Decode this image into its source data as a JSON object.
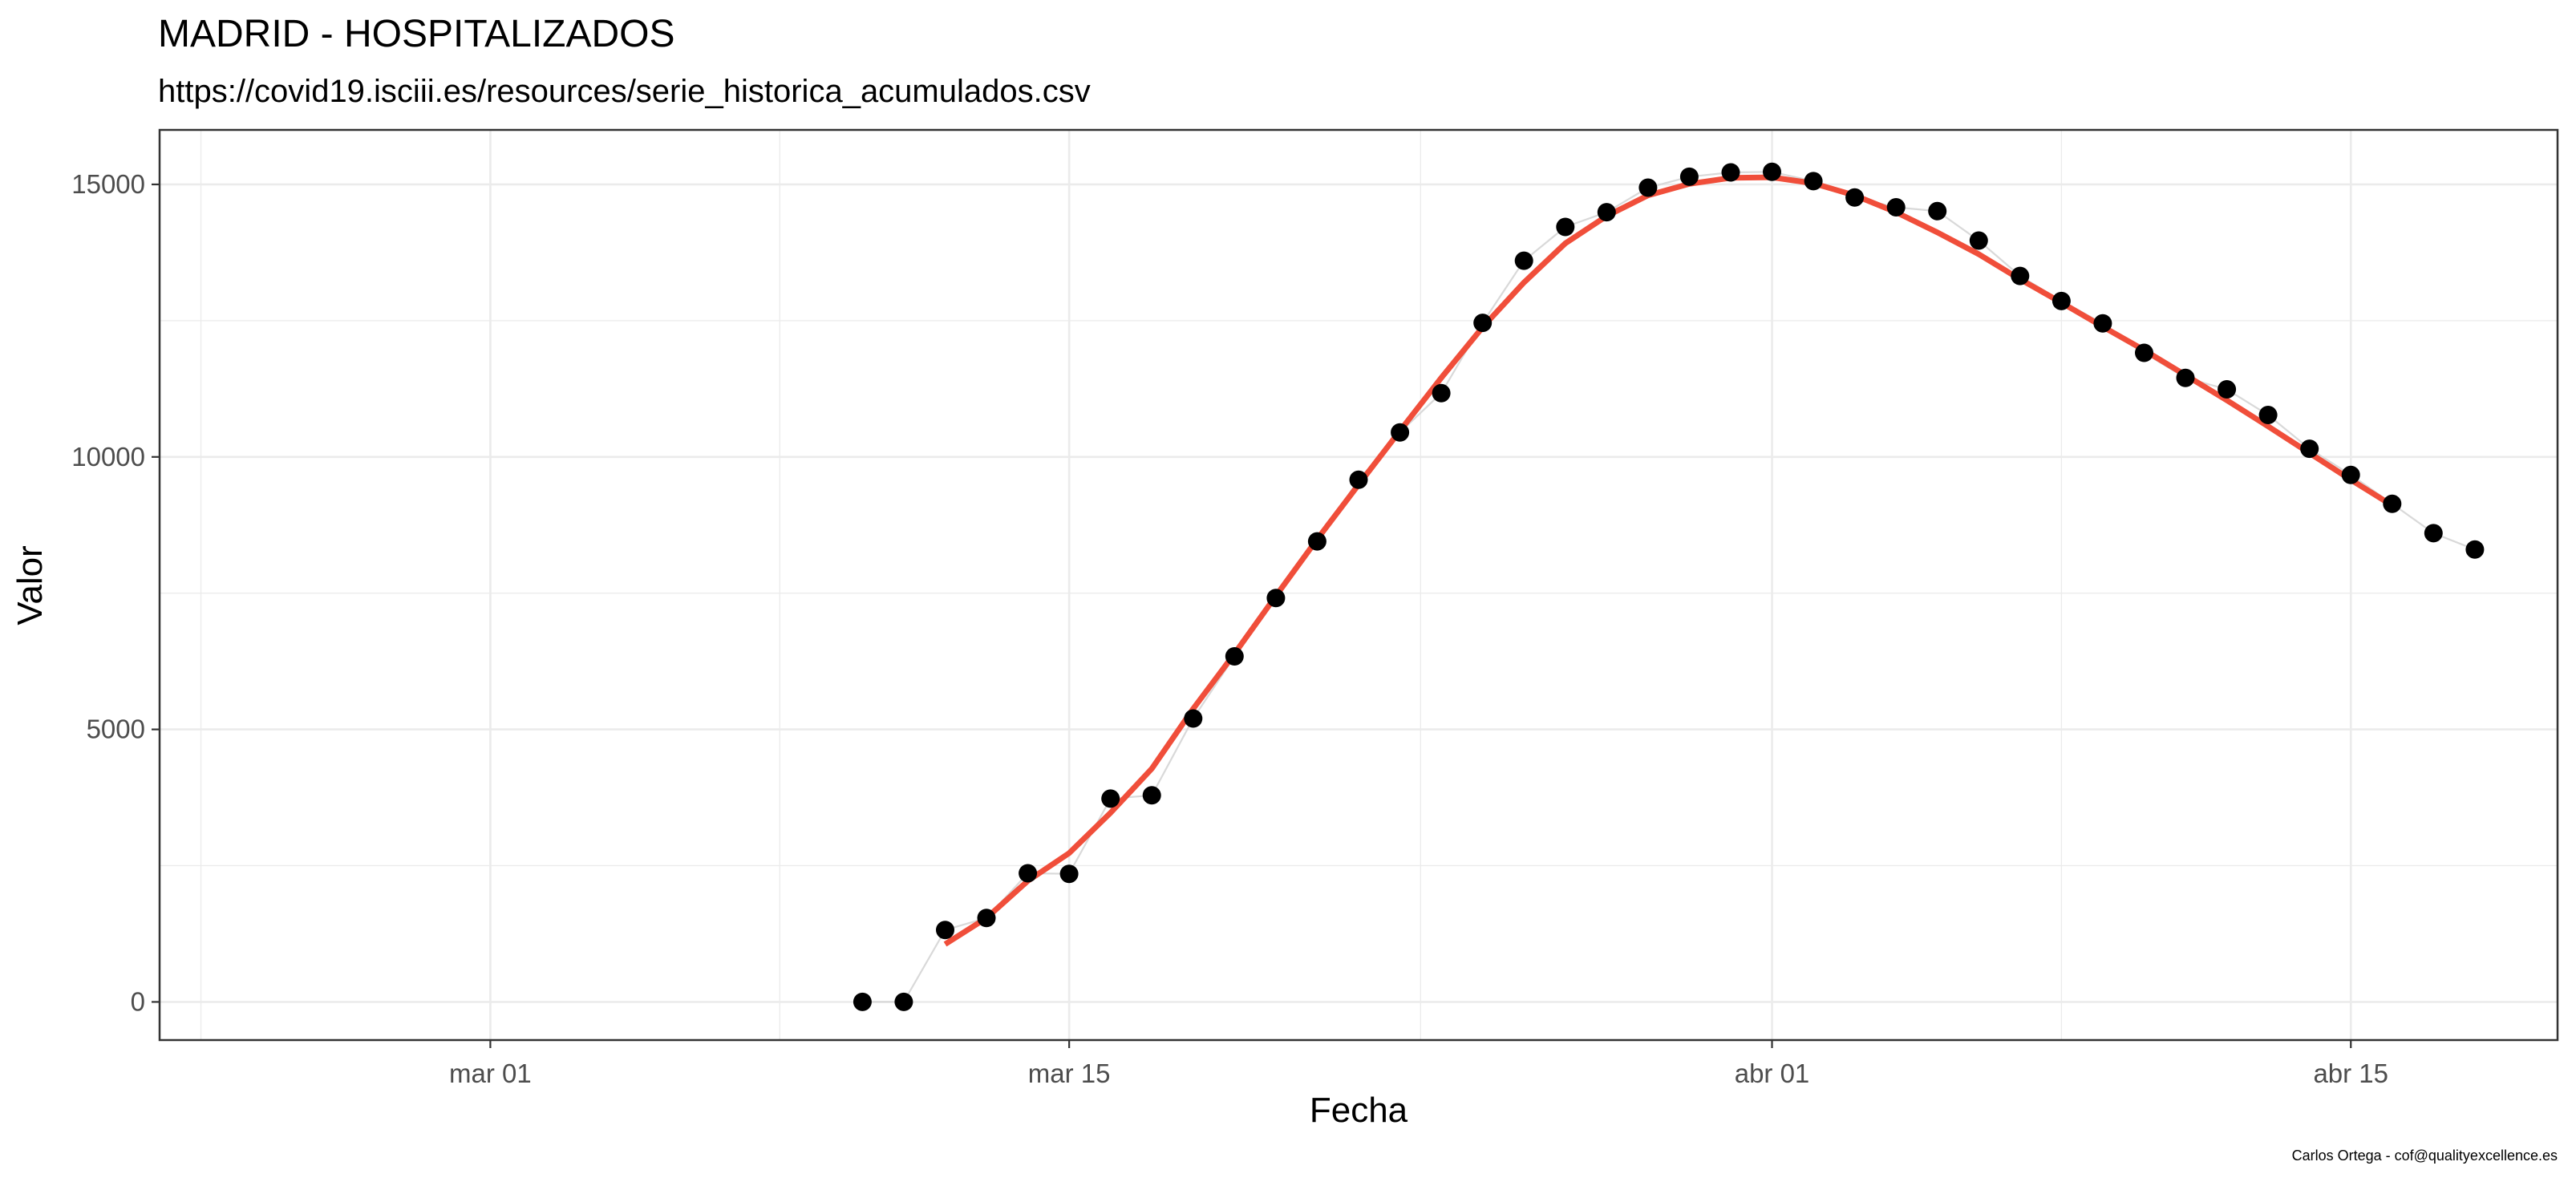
{
  "chart_data": {
    "type": "line",
    "title": "MADRID - HOSPITALIZADOS",
    "subtitle": "https://covid19.isciii.es/resources/serie_historica_acumulados.csv",
    "caption": "Carlos Ortega - cof@qualityexcellence.es",
    "xlabel": "Fecha",
    "ylabel": "Valor",
    "xlim": [
      "2020-02-22",
      "2020-04-20"
    ],
    "ylim": [
      -700,
      16000
    ],
    "x_ticks": [
      {
        "date": "2020-03-01",
        "label": "mar 01"
      },
      {
        "date": "2020-03-15",
        "label": "mar 15"
      },
      {
        "date": "2020-04-01",
        "label": "abr 01"
      },
      {
        "date": "2020-04-15",
        "label": "abr 15"
      }
    ],
    "y_ticks": [
      0,
      5000,
      10000,
      15000
    ],
    "grid": true,
    "colors": {
      "points": "#000000",
      "connector": "#d9d9d9",
      "smooth": "#f04e3a",
      "grid": "#ebebeb",
      "panel_border": "#333333"
    },
    "series": [
      {
        "type": "scatter",
        "x": [
          "2020-03-10",
          "2020-03-11",
          "2020-03-12",
          "2020-03-13",
          "2020-03-14",
          "2020-03-15",
          "2020-03-16",
          "2020-03-17",
          "2020-03-18",
          "2020-03-19",
          "2020-03-20",
          "2020-03-21",
          "2020-03-22",
          "2020-03-23",
          "2020-03-24",
          "2020-03-25",
          "2020-03-26",
          "2020-03-27",
          "2020-03-28",
          "2020-03-29",
          "2020-03-30",
          "2020-03-31",
          "2020-04-01",
          "2020-04-02",
          "2020-04-03",
          "2020-04-04",
          "2020-04-05",
          "2020-04-06",
          "2020-04-07",
          "2020-04-08",
          "2020-04-09",
          "2020-04-10",
          "2020-04-11",
          "2020-04-12",
          "2020-04-13",
          "2020-04-14",
          "2020-04-15",
          "2020-04-16",
          "2020-04-17",
          "2020-04-18"
        ],
        "values": [
          0,
          0,
          1320,
          1540,
          2360,
          2350,
          3730,
          3790,
          5200,
          6340,
          7410,
          8450,
          9580,
          10450,
          11170,
          12460,
          13600,
          14220,
          14490,
          14940,
          15140,
          15220,
          15230,
          15060,
          14760,
          14580,
          14510,
          13970,
          13320,
          12860,
          12450,
          11910,
          11450,
          11240,
          10770,
          10150,
          9670,
          9140,
          8600,
          8300
        ]
      },
      {
        "type": "line",
        "x": [
          "2020-03-12",
          "2020-03-13",
          "2020-03-14",
          "2020-03-15",
          "2020-03-16",
          "2020-03-17",
          "2020-03-18",
          "2020-03-19",
          "2020-03-20",
          "2020-03-21",
          "2020-03-22",
          "2020-03-23",
          "2020-03-24",
          "2020-03-25",
          "2020-03-26",
          "2020-03-27",
          "2020-03-28",
          "2020-03-29",
          "2020-03-30",
          "2020-03-31",
          "2020-04-01",
          "2020-04-02",
          "2020-04-03",
          "2020-04-04",
          "2020-04-05",
          "2020-04-06",
          "2020-04-07",
          "2020-04-08",
          "2020-04-09",
          "2020-04-10",
          "2020-04-11",
          "2020-04-12",
          "2020-04-13",
          "2020-04-14",
          "2020-04-15",
          "2020-04-16"
        ],
        "values": [
          1060,
          1540,
          2220,
          2730,
          3470,
          4280,
          5380,
          6390,
          7450,
          8490,
          9490,
          10480,
          11450,
          12380,
          13200,
          13920,
          14420,
          14800,
          15010,
          15120,
          15130,
          15020,
          14800,
          14490,
          14120,
          13720,
          13260,
          12830,
          12390,
          11960,
          11500,
          11040,
          10560,
          10070,
          9580,
          9110
        ]
      }
    ]
  }
}
